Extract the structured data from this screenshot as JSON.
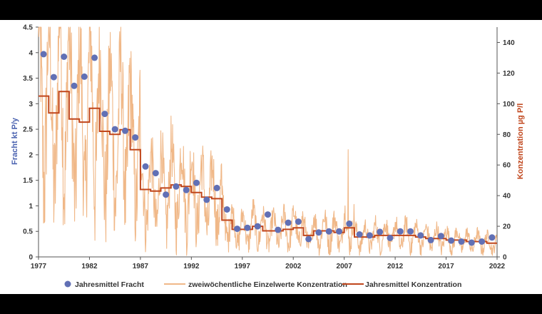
{
  "chart_data": {
    "type": "line",
    "title": "",
    "colors": {
      "fracht": "#6170b5",
      "einzelwerte": "#f0b888",
      "konzentration_mittel": "#c0461c",
      "left_axis_title": "#4a62b0",
      "right_axis_title": "#c0461c"
    },
    "x_axis": {
      "range": [
        1977,
        2022
      ],
      "tick_values": [
        1977,
        1982,
        1987,
        1992,
        1997,
        2002,
        2007,
        2012,
        2017,
        2022
      ],
      "tick_labels": [
        "1977",
        "1982",
        "1987",
        "1992",
        "1997",
        "2002",
        "2007",
        "2012",
        "2017",
        "2022"
      ]
    },
    "y_left": {
      "label": "Fracht kt P/y",
      "range": [
        0,
        4.5
      ],
      "tick_values": [
        0,
        0.5,
        1,
        1.5,
        2,
        2.5,
        3,
        3.5,
        4,
        4.5
      ],
      "tick_labels": [
        "0",
        "0.5",
        "1",
        "1.5",
        "2",
        "2.5",
        "3",
        "3.5",
        "4",
        "4.5"
      ]
    },
    "y_right": {
      "label": "Konzentration µg P/l",
      "range": [
        0,
        150
      ],
      "tick_values": [
        0,
        20,
        40,
        60,
        80,
        100,
        120,
        140
      ],
      "tick_labels": [
        "0",
        "20",
        "40",
        "60",
        "80",
        "100",
        "120",
        "140"
      ]
    },
    "legend": [
      {
        "key": "fracht",
        "label": "Jahresmittel Fracht"
      },
      {
        "key": "einzelwerte",
        "label": "zweiwöchentliche Einzelwerte Konzentration"
      },
      {
        "key": "konzentration_mittel",
        "label": "Jahresmittel Konzentration"
      }
    ],
    "series": [
      {
        "name": "Jahresmittel Fracht",
        "axis": "left",
        "kind": "scatter",
        "x": [
          1977.5,
          1978.5,
          1979.5,
          1980.5,
          1981.5,
          1982.5,
          1983.5,
          1984.5,
          1985.5,
          1986.5,
          1987.5,
          1988.5,
          1989.5,
          1990.5,
          1991.5,
          1992.5,
          1993.5,
          1994.5,
          1995.5,
          1996.5,
          1997.5,
          1998.5,
          1999.5,
          2000.5,
          2001.5,
          2002.5,
          2003.5,
          2004.5,
          2005.5,
          2006.5,
          2007.5,
          2008.5,
          2009.5,
          2010.5,
          2011.5,
          2012.5,
          2013.5,
          2014.5,
          2015.5,
          2016.5,
          2017.5,
          2018.5,
          2019.5,
          2020.5,
          2021.5
        ],
        "y": [
          3.97,
          3.52,
          3.92,
          3.35,
          3.53,
          3.9,
          2.8,
          2.5,
          2.47,
          2.34,
          1.77,
          1.64,
          1.22,
          1.38,
          1.31,
          1.45,
          1.12,
          1.35,
          0.93,
          0.55,
          0.57,
          0.6,
          0.83,
          0.53,
          0.67,
          0.69,
          0.35,
          0.48,
          0.5,
          0.5,
          0.65,
          0.44,
          0.42,
          0.49,
          0.37,
          0.5,
          0.5,
          0.42,
          0.33,
          0.41,
          0.32,
          0.3,
          0.28,
          0.3,
          0.38
        ]
      },
      {
        "name": "Jahresmittel Konzentration",
        "axis": "right",
        "kind": "step",
        "x": [
          1977,
          1978,
          1979,
          1980,
          1981,
          1982,
          1983,
          1984,
          1985,
          1986,
          1987,
          1988,
          1989,
          1990,
          1991,
          1992,
          1993,
          1994,
          1995,
          1996,
          1997,
          1998,
          1999,
          2000,
          2001,
          2002,
          2003,
          2004,
          2005,
          2006,
          2007,
          2008,
          2009,
          2010,
          2011,
          2012,
          2013,
          2014,
          2015,
          2016,
          2017,
          2018,
          2019,
          2020,
          2021
        ],
        "y": [
          105,
          94,
          108,
          90,
          88,
          97,
          82,
          80,
          83,
          70,
          44,
          43,
          45,
          47,
          46,
          42,
          39,
          38,
          24,
          18,
          18,
          20,
          17,
          17,
          18,
          19,
          14,
          17,
          17,
          16,
          19,
          13,
          13,
          14,
          14,
          14,
          14,
          13,
          12,
          12,
          11,
          11,
          10,
          10,
          9
        ],
        "end_x": 2022
      },
      {
        "name": "zweiwöchentliche Einzelwerte Konzentration",
        "axis": "right",
        "kind": "line",
        "points_per_year": 26,
        "peak_x": 2007.4,
        "peak_y": 70
      }
    ]
  }
}
